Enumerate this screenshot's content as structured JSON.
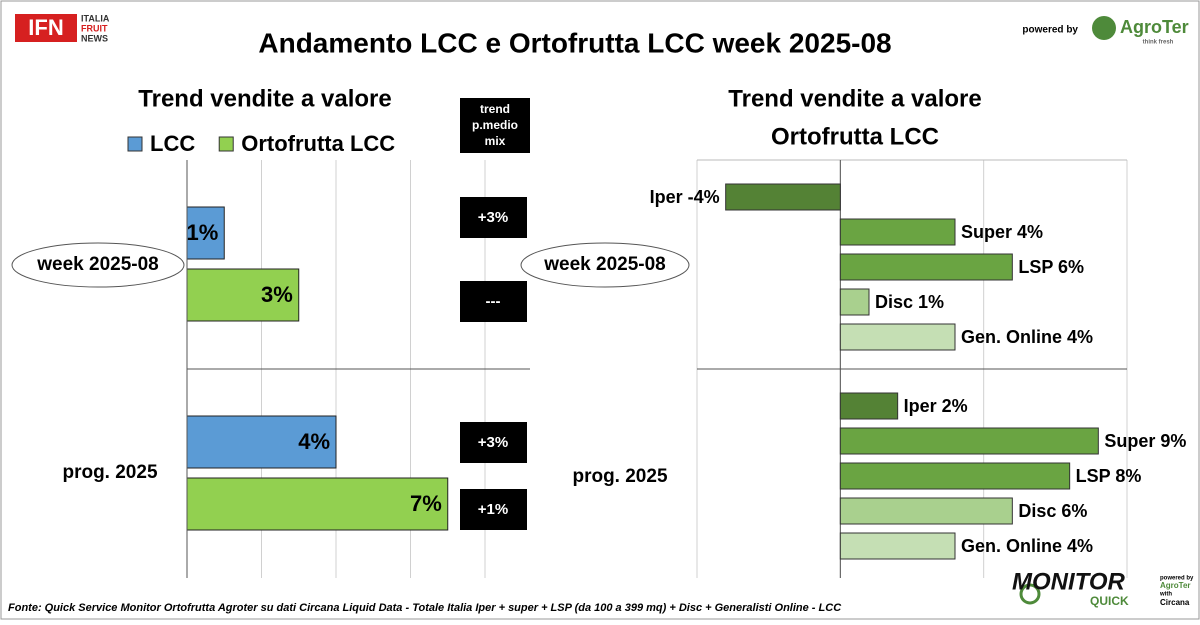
{
  "header": {
    "logo_left": "IFN",
    "logo_left_lines": [
      "ITALIA",
      "FRUIT",
      "NEWS"
    ],
    "title": "Andamento LCC e Ortofrutta LCC week 2025-08",
    "powered_by": "powered by",
    "logo_right": "AgroTer",
    "logo_right_tagline": "think fresh"
  },
  "chart_data": [
    {
      "type": "bar",
      "orientation": "horizontal",
      "title": "Trend vendite a valore",
      "categories": [
        "week 2025-08",
        "prog. 2025"
      ],
      "series": [
        {
          "name": "LCC",
          "color": "#5b9bd5",
          "values": [
            1,
            4
          ],
          "value_labels": [
            "1%",
            "4%"
          ]
        },
        {
          "name": "Ortofrutta LCC",
          "color": "#92d050",
          "values": [
            3,
            7
          ],
          "value_labels": [
            "3%",
            "7%"
          ]
        }
      ],
      "xlim": [
        0,
        8
      ],
      "xticks": [
        0,
        2,
        4,
        6,
        8
      ],
      "grid": true,
      "legend": "top",
      "side_column": {
        "title": [
          "trend",
          "p.medio",
          "mix"
        ],
        "values": [
          "+3%",
          "---",
          "+3%",
          "+1%"
        ]
      }
    },
    {
      "type": "bar",
      "orientation": "horizontal",
      "title": [
        "Trend vendite a valore",
        "Ortofrutta LCC"
      ],
      "categories": [
        "week 2025-08",
        "prog. 2025"
      ],
      "series": [
        {
          "color": "#548235",
          "values": [
            -4,
            2
          ],
          "value_labels": [
            "Iper -4%",
            "Iper 2%"
          ]
        },
        {
          "color": "#6aa442",
          "values": [
            4,
            9
          ],
          "value_labels": [
            "Super 4%",
            "Super 9%"
          ]
        },
        {
          "color": "#6aa442",
          "values": [
            6,
            8
          ],
          "value_labels": [
            "LSP 6%",
            "LSP 8%"
          ]
        },
        {
          "color": "#a9d08e",
          "values": [
            1,
            6
          ],
          "value_labels": [
            "Disc 1%",
            "Disc 6%"
          ]
        },
        {
          "color": "#c5dfb4",
          "values": [
            4,
            4
          ],
          "value_labels": [
            "Gen. Online 4%",
            "Gen. Online 4%"
          ]
        }
      ],
      "xlim": [
        -5,
        10
      ],
      "xticks": [
        -5,
        0,
        5,
        10
      ],
      "grid": true
    }
  ],
  "footer": {
    "source": "Fonte: Quick Service Monitor Ortofrutta Agroter su dati Circana Liquid Data - Totale Italia Iper + super + LSP (da 100 a 399 mq) + Disc + Generalisti Online - LCC",
    "logo": [
      "MONITOR",
      "QUICK"
    ],
    "logo_small": [
      "powered by",
      "AgroTer",
      "with",
      "Circana"
    ]
  }
}
